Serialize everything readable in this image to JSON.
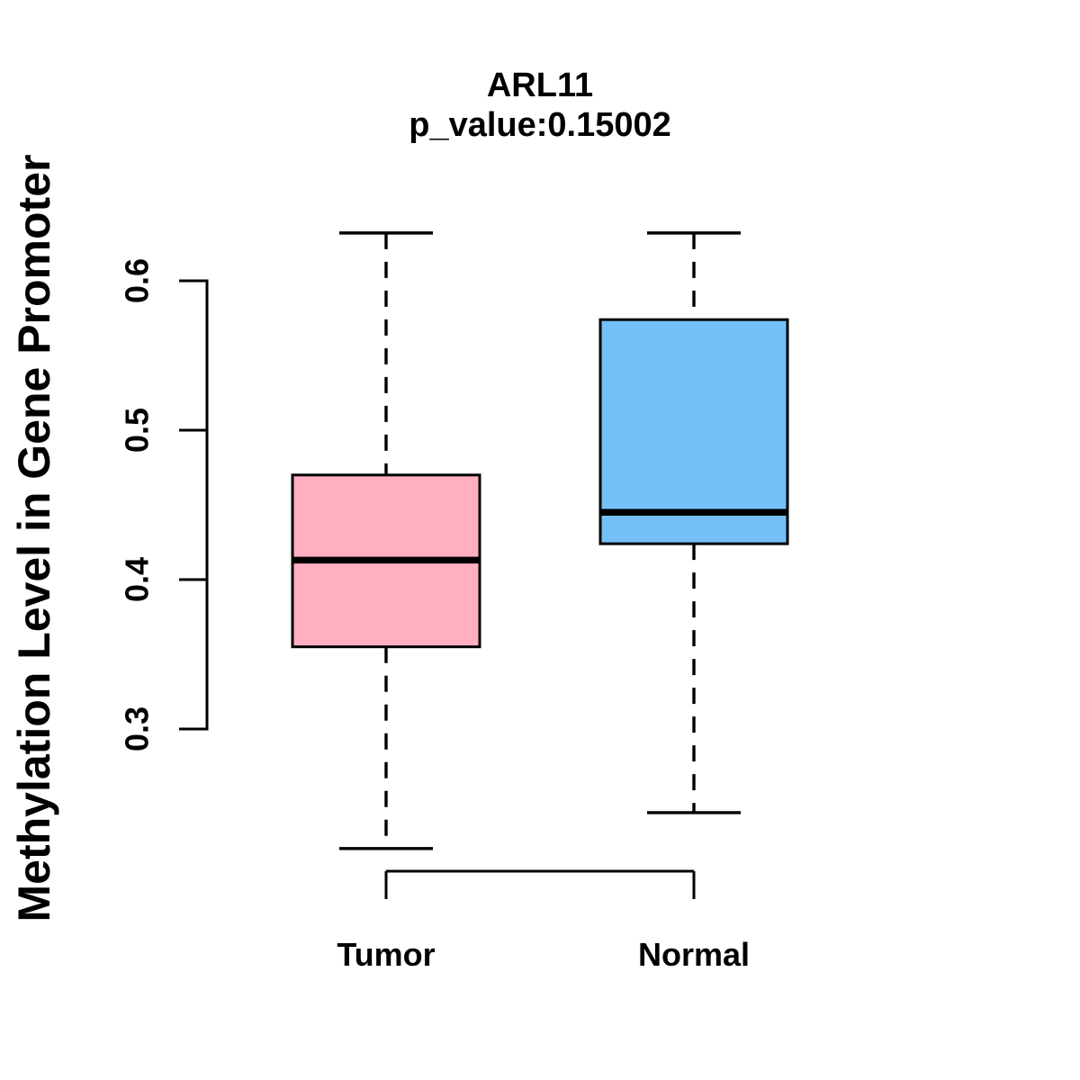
{
  "figure": {
    "background_color": "#FFFFFF",
    "axis_color": "#000000",
    "text_color": "#000000"
  },
  "chart_data": {
    "type": "boxplot",
    "title": "ARL11",
    "subtitle": "p_value:0.15002",
    "ylabel": "Methylation Level in Gene Promoter",
    "xlabel": "",
    "categories": [
      "Tumor",
      "Normal"
    ],
    "ytick_labels": [
      "0.3",
      "0.4",
      "0.5",
      "0.6"
    ],
    "yticks": [
      0.3,
      0.4,
      0.5,
      0.6
    ],
    "ylim": [
      0.21,
      0.65
    ],
    "grid": false,
    "legend": "none",
    "whisker_style": "dashed",
    "median_color": "#000000",
    "box_border_color": "#000000",
    "series": [
      {
        "name": "Tumor",
        "fill_color": "#FFAFC1",
        "whisker_low": 0.22,
        "q1": 0.355,
        "median": 0.413,
        "q3": 0.47,
        "whisker_high": 0.632
      },
      {
        "name": "Normal",
        "fill_color": "#75C0F8",
        "whisker_low": 0.244,
        "q1": 0.424,
        "median": 0.445,
        "q3": 0.574,
        "whisker_high": 0.632
      }
    ]
  }
}
